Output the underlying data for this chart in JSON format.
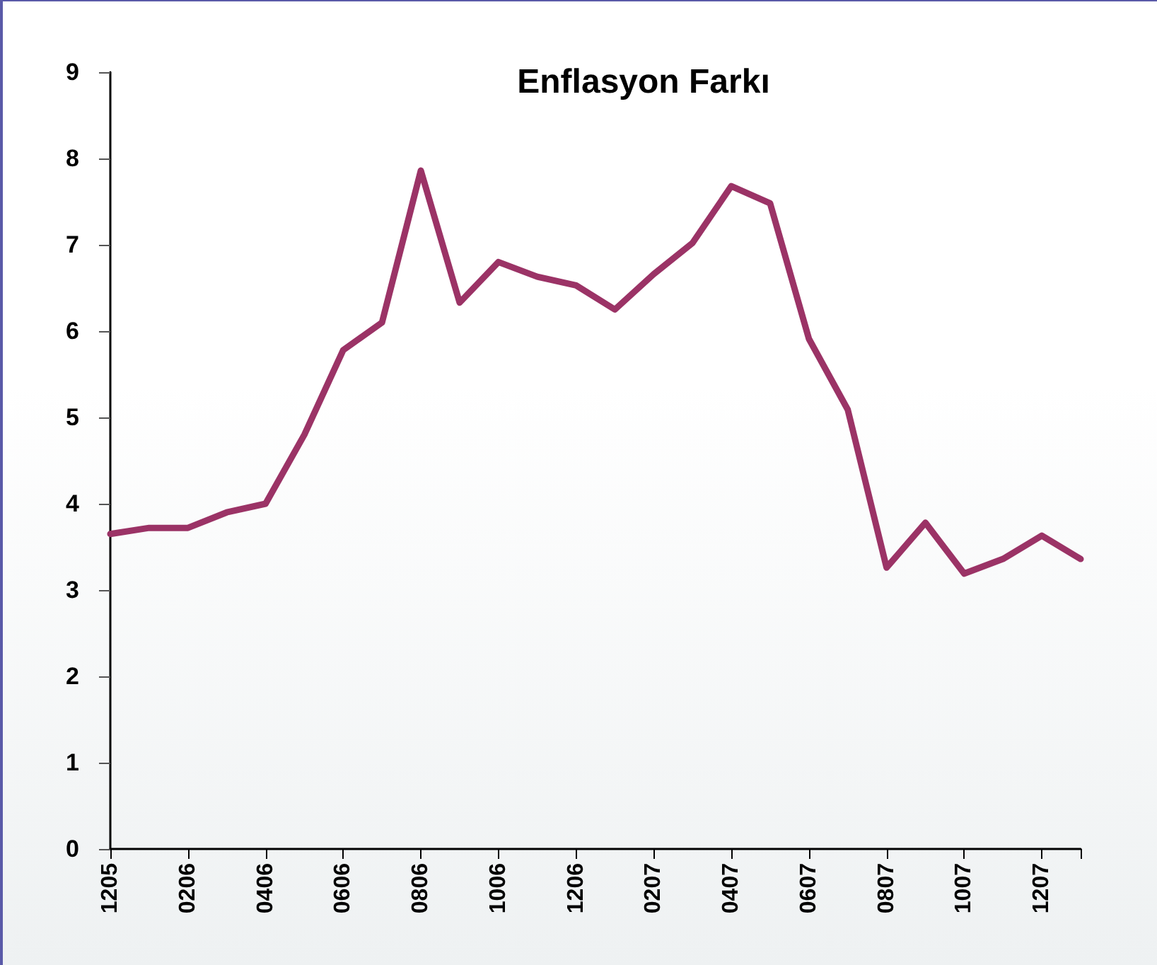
{
  "chart_data": {
    "type": "line",
    "title": "Enflasyon Farkı",
    "categories": [
      "1205",
      null,
      "0206",
      null,
      "0406",
      null,
      "0606",
      null,
      "0806",
      null,
      "1006",
      null,
      "1206",
      null,
      "0207",
      null,
      "0407",
      null,
      "0607",
      null,
      "0807",
      null,
      "1007",
      null,
      "1207",
      null
    ],
    "series": [
      {
        "color": "#9b3366",
        "values": [
          3.65,
          3.72,
          3.72,
          3.9,
          4.0,
          4.8,
          5.78,
          6.1,
          7.86,
          6.33,
          6.8,
          6.63,
          6.53,
          6.25,
          6.66,
          7.02,
          7.68,
          7.48,
          5.91,
          5.09,
          3.26,
          3.78,
          3.19,
          3.36,
          3.63,
          3.36
        ]
      }
    ],
    "ylim": [
      0,
      9
    ],
    "yticks": [
      0,
      1,
      2,
      3,
      4,
      5,
      6,
      7,
      8,
      9
    ],
    "grid": false,
    "marker": "none",
    "line_style": "solid"
  }
}
